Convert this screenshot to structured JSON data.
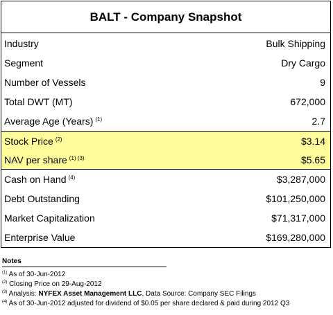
{
  "title": "BALT - Company Snapshot",
  "group1": [
    {
      "label": "Industry",
      "sup": "",
      "value": "Bulk Shipping"
    },
    {
      "label": "Segment",
      "sup": "",
      "value": "Dry Cargo"
    },
    {
      "label": "Number of Vessels",
      "sup": "",
      "value": "9"
    },
    {
      "label": "Total DWT (MT)",
      "sup": "",
      "value": "672,000"
    },
    {
      "label": "Average Age (Years)",
      "sup": "(1)",
      "value": "2.7"
    }
  ],
  "group2": [
    {
      "label": "Stock Price",
      "sup": "(2)",
      "value": "$3.14"
    },
    {
      "label": "NAV per share",
      "sup": "(1) (3)",
      "value": "$5.65"
    }
  ],
  "group3": [
    {
      "label": "Cash on Hand",
      "sup": "(4)",
      "value": "$3,287,000"
    },
    {
      "label": "Debt Outstanding",
      "sup": "",
      "value": "$101,250,000"
    },
    {
      "label": "Market Capitalization",
      "sup": "",
      "value": "$71,317,000"
    },
    {
      "label": "Enterprise Value",
      "sup": "",
      "value": "$169,280,000"
    }
  ],
  "highlight_color": "#fffc9b",
  "notes": {
    "title": "Notes",
    "items": [
      {
        "sup": "(1)",
        "pre": " As of 30-Jun-2012",
        "bold": "",
        "post": ""
      },
      {
        "sup": "(2)",
        "pre": "  Closing Price on 29-Aug-2012",
        "bold": "",
        "post": ""
      },
      {
        "sup": "(3)",
        "pre": " Analysis: ",
        "bold": "NYFEX Asset Management LLC",
        "post": ", Data Source: Company SEC Filings"
      },
      {
        "sup": "(4)",
        "pre": " As of 30-Jun-2012 adjusted for dividend of $0.05 per share declared & paid during 2012 Q3",
        "bold": "",
        "post": ""
      }
    ]
  }
}
